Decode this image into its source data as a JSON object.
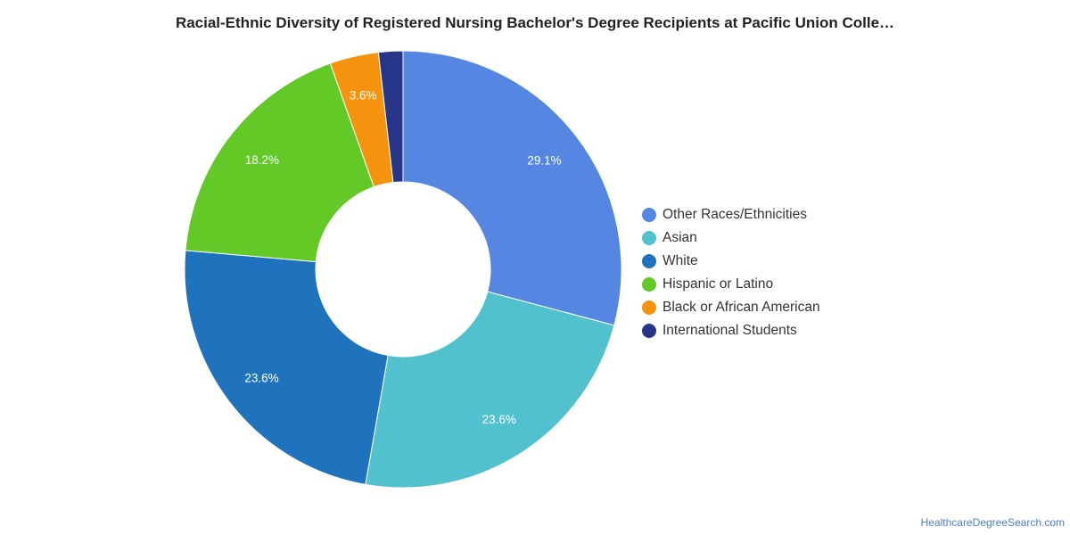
{
  "chart_data": {
    "type": "pie",
    "title": "Racial-Ethnic Diversity of Registered Nursing Bachelor's Degree Recipients at Pacific Union Colle…",
    "legend_position": "right",
    "donut": true,
    "categories": [
      "Other Races/Ethnicities",
      "Asian",
      "White",
      "Hispanic or Latino",
      "Black or African American",
      "International Students"
    ],
    "values": [
      29.1,
      23.6,
      23.6,
      18.2,
      3.6,
      1.8
    ],
    "labels": [
      "29.1%",
      "23.6%",
      "23.6%",
      "18.2%",
      "3.6%",
      ""
    ],
    "colors": [
      "#5486e2",
      "#51c1ce",
      "#1f73bd",
      "#62c926",
      "#f6930e",
      "#28368a"
    ]
  },
  "footer": {
    "source": "HealthcareDegreeSearch.com"
  }
}
